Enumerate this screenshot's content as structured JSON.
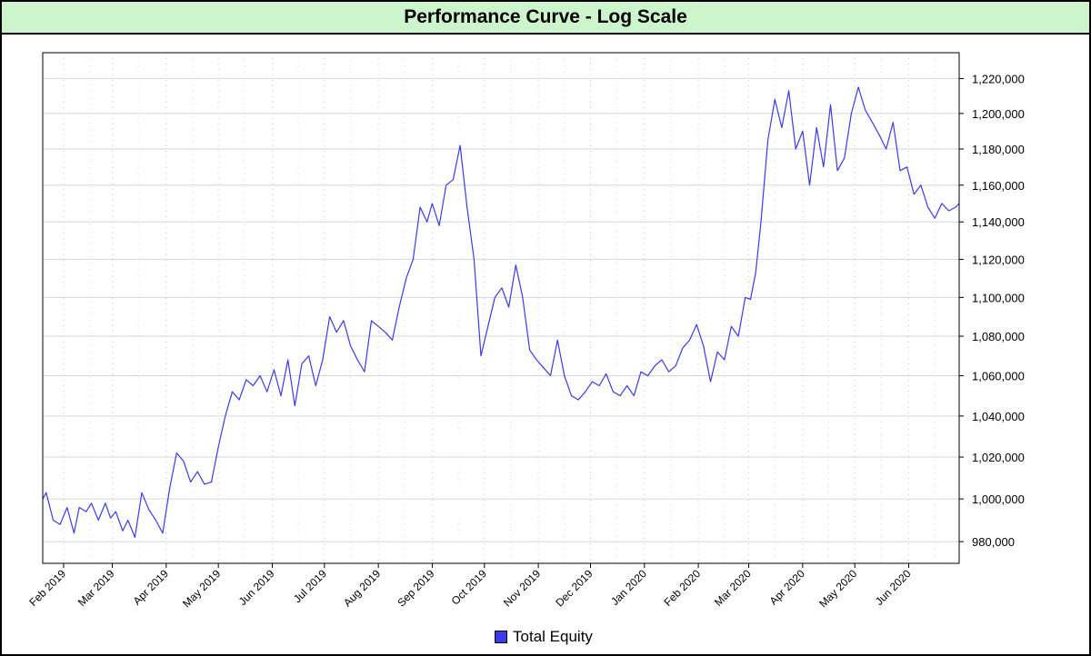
{
  "title": "Performance Curve - Log Scale",
  "chart_data": {
    "type": "line",
    "title": "Performance Curve - Log Scale",
    "xlabel": "",
    "ylabel": "",
    "y_scale": "log",
    "ylim": [
      970000,
      1235000
    ],
    "xlim": [
      "2019-01-20",
      "2020-06-30"
    ],
    "grid": true,
    "legend_position": "bottom-center",
    "y_ticks": [
      980000,
      1000000,
      1020000,
      1040000,
      1060000,
      1080000,
      1100000,
      1120000,
      1140000,
      1160000,
      1180000,
      1200000,
      1220000
    ],
    "y_tick_labels": [
      "980,000",
      "1,000,000",
      "1,020,000",
      "1,040,000",
      "1,060,000",
      "1,080,000",
      "1,100,000",
      "1,120,000",
      "1,140,000",
      "1,160,000",
      "1,180,000",
      "1,200,000",
      "1,220,000"
    ],
    "x_ticks": [
      "2019-02-01",
      "2019-03-01",
      "2019-04-01",
      "2019-05-01",
      "2019-06-01",
      "2019-07-01",
      "2019-08-01",
      "2019-09-01",
      "2019-10-01",
      "2019-11-01",
      "2019-12-01",
      "2020-01-01",
      "2020-02-01",
      "2020-03-01",
      "2020-04-01",
      "2020-05-01",
      "2020-06-01"
    ],
    "x_tick_labels": [
      "Feb 2019",
      "Mar 2019",
      "Apr 2019",
      "May 2019",
      "Jun 2019",
      "Jul 2019",
      "Aug 2019",
      "Sep 2019",
      "Oct 2019",
      "Nov 2019",
      "Dec 2019",
      "Jan 2020",
      "Feb 2020",
      "Mar 2020",
      "Apr 2020",
      "May 2020",
      "Jun 2020"
    ],
    "series": [
      {
        "name": "Total Equity",
        "color": "#3a3af0",
        "x": [
          "2019-01-20",
          "2019-01-22",
          "2019-01-26",
          "2019-01-30",
          "2019-02-03",
          "2019-02-07",
          "2019-02-10",
          "2019-02-14",
          "2019-02-17",
          "2019-02-21",
          "2019-02-25",
          "2019-02-28",
          "2019-03-03",
          "2019-03-07",
          "2019-03-10",
          "2019-03-14",
          "2019-03-18",
          "2019-03-22",
          "2019-03-26",
          "2019-03-30",
          "2019-04-03",
          "2019-04-07",
          "2019-04-11",
          "2019-04-15",
          "2019-04-19",
          "2019-04-23",
          "2019-04-27",
          "2019-05-01",
          "2019-05-05",
          "2019-05-09",
          "2019-05-13",
          "2019-05-17",
          "2019-05-21",
          "2019-05-25",
          "2019-05-29",
          "2019-06-02",
          "2019-06-06",
          "2019-06-10",
          "2019-06-14",
          "2019-06-18",
          "2019-06-22",
          "2019-06-26",
          "2019-06-30",
          "2019-07-04",
          "2019-07-08",
          "2019-07-12",
          "2019-07-16",
          "2019-07-20",
          "2019-07-24",
          "2019-07-28",
          "2019-08-01",
          "2019-08-05",
          "2019-08-09",
          "2019-08-13",
          "2019-08-17",
          "2019-08-21",
          "2019-08-25",
          "2019-08-29",
          "2019-09-01",
          "2019-09-05",
          "2019-09-09",
          "2019-09-13",
          "2019-09-17",
          "2019-09-21",
          "2019-09-25",
          "2019-09-29",
          "2019-10-03",
          "2019-10-07",
          "2019-10-11",
          "2019-10-15",
          "2019-10-19",
          "2019-10-23",
          "2019-10-27",
          "2019-10-31",
          "2019-11-04",
          "2019-11-08",
          "2019-11-12",
          "2019-11-16",
          "2019-11-20",
          "2019-11-24",
          "2019-11-28",
          "2019-12-02",
          "2019-12-06",
          "2019-12-10",
          "2019-12-14",
          "2019-12-18",
          "2019-12-22",
          "2019-12-26",
          "2019-12-30",
          "2020-01-03",
          "2020-01-07",
          "2020-01-11",
          "2020-01-15",
          "2020-01-19",
          "2020-01-23",
          "2020-01-27",
          "2020-01-31",
          "2020-02-04",
          "2020-02-08",
          "2020-02-12",
          "2020-02-16",
          "2020-02-20",
          "2020-02-24",
          "2020-02-28",
          "2020-03-02",
          "2020-03-05",
          "2020-03-08",
          "2020-03-12",
          "2020-03-16",
          "2020-03-20",
          "2020-03-24",
          "2020-03-28",
          "2020-04-01",
          "2020-04-05",
          "2020-04-09",
          "2020-04-13",
          "2020-04-17",
          "2020-04-21",
          "2020-04-25",
          "2020-04-29",
          "2020-05-03",
          "2020-05-07",
          "2020-05-11",
          "2020-05-15",
          "2020-05-19",
          "2020-05-23",
          "2020-05-27",
          "2020-05-31",
          "2020-06-04",
          "2020-06-08",
          "2020-06-12",
          "2020-06-16",
          "2020-06-20",
          "2020-06-24",
          "2020-06-28",
          "2020-06-30"
        ],
        "y": [
          1000000,
          1003000,
          990000,
          988000,
          996000,
          984000,
          996000,
          994000,
          998000,
          990000,
          998000,
          991000,
          994000,
          985000,
          990000,
          982000,
          1003000,
          995000,
          990000,
          984000,
          1005000,
          1022000,
          1018000,
          1008000,
          1013000,
          1007000,
          1008000,
          1025000,
          1040000,
          1052000,
          1048000,
          1058000,
          1055000,
          1060000,
          1052000,
          1063000,
          1050000,
          1068000,
          1045000,
          1066000,
          1070000,
          1055000,
          1068000,
          1090000,
          1082000,
          1088000,
          1075000,
          1068000,
          1062000,
          1088000,
          1085000,
          1082000,
          1078000,
          1095000,
          1110000,
          1120000,
          1148000,
          1140000,
          1150000,
          1138000,
          1160000,
          1163000,
          1182000,
          1148000,
          1120000,
          1070000,
          1085000,
          1100000,
          1105000,
          1095000,
          1117000,
          1100000,
          1073000,
          1068000,
          1064000,
          1060000,
          1078000,
          1060000,
          1050000,
          1048000,
          1052000,
          1057000,
          1055000,
          1061000,
          1052000,
          1050000,
          1055000,
          1050000,
          1062000,
          1060000,
          1065000,
          1068000,
          1062000,
          1065000,
          1074000,
          1078000,
          1086000,
          1075000,
          1057000,
          1072000,
          1068000,
          1085000,
          1080000,
          1100000,
          1099000,
          1113000,
          1140000,
          1185000,
          1208000,
          1192000,
          1213000,
          1180000,
          1190000,
          1160000,
          1192000,
          1170000,
          1205000,
          1168000,
          1175000,
          1200000,
          1215000,
          1202000,
          1195000,
          1188000,
          1180000,
          1195000,
          1168000,
          1170000,
          1155000,
          1160000,
          1148000,
          1142000,
          1150000,
          1146000,
          1148000,
          1150000
        ]
      }
    ]
  }
}
